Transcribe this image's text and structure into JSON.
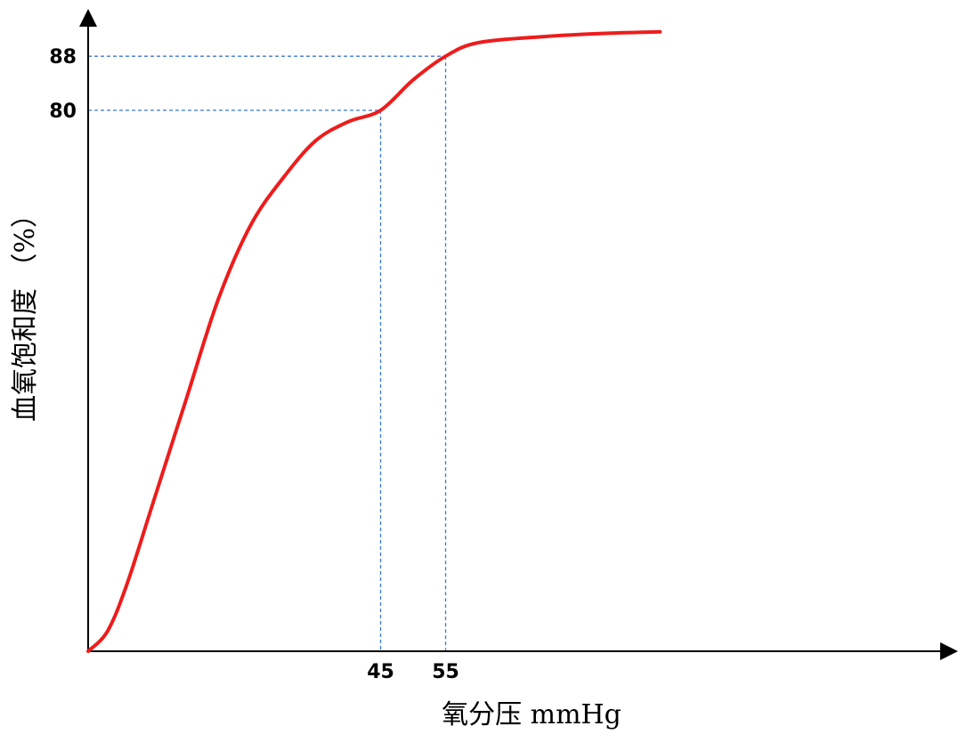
{
  "chart_data": {
    "type": "line",
    "title": "",
    "xlabel": "氧分压 mmHg",
    "ylabel": "血氧饱和度 （%）",
    "x_ticks": [
      "45",
      "55"
    ],
    "y_ticks": [
      "80",
      "88"
    ],
    "grid": false,
    "series": [
      {
        "color": "#ee1c1c",
        "x": [
          0,
          3,
          6,
          10,
          15,
          20,
          25,
          30,
          35,
          40,
          45,
          50,
          55,
          60,
          70,
          80,
          88
        ],
        "y": [
          0,
          3,
          10,
          22,
          37,
          52,
          63,
          70,
          75.5,
          78.3,
          80,
          84.5,
          88,
          90,
          90.9,
          91.4,
          91.6
        ]
      }
    ],
    "reference_points": [
      {
        "x": 45,
        "y": 80
      },
      {
        "x": 55,
        "y": 88
      }
    ],
    "colors": {
      "curve": "#ee1c1c",
      "guides": "#3a78d8",
      "axis": "#000000"
    }
  }
}
